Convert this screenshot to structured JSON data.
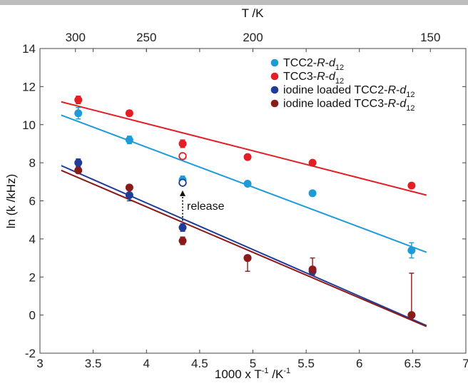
{
  "chart_data": {
    "type": "scatter",
    "xlabel": "1000 x T",
    "xlabel_sup1": "-1",
    "xlabel_mid": " /K",
    "xlabel_sup2": "-1",
    "ylabel": "ln (k /kHz)",
    "top_axis_label": "T /K",
    "xlim": [
      3,
      7
    ],
    "ylim": [
      -2,
      14
    ],
    "x_ticks": [
      "3",
      "3.5",
      "4",
      "4.5",
      "5",
      "5.5",
      "6",
      "6.5",
      "7"
    ],
    "y_ticks": [
      "-2",
      "0",
      "2",
      "4",
      "6",
      "8",
      "10",
      "12",
      "14"
    ],
    "top_ticks": [
      {
        "label": "300",
        "temperature": 300
      },
      {
        "label": "250",
        "temperature": 250
      },
      {
        "label": "200",
        "temperature": 200
      },
      {
        "label": "150",
        "temperature": 150
      }
    ],
    "grid": false,
    "legend_placement": "top-right",
    "series": [
      {
        "name": "TCC2-",
        "name_italic": "R",
        "name_dash": "-",
        "name_d": "d",
        "name_sub": "12",
        "color": "#1e9ad6",
        "x": [
          3.36,
          3.84,
          4.34,
          4.95,
          5.56,
          6.49
        ],
        "y": [
          10.6,
          9.2,
          7.1,
          6.9,
          6.4,
          3.4
        ],
        "err": [
          0.3,
          0.2,
          0.2,
          0.1,
          0.1,
          0.4
        ],
        "fit": {
          "x": [
            3.2,
            6.63
          ],
          "y": [
            10.5,
            3.3
          ]
        }
      },
      {
        "name": "TCC3-",
        "name_italic": "R",
        "name_dash": "-",
        "name_d": "d",
        "name_sub": "12",
        "color": "#e31e24",
        "x": [
          3.36,
          3.84,
          4.34,
          4.95,
          5.56,
          6.49
        ],
        "y": [
          11.3,
          10.6,
          9.0,
          8.3,
          8.0,
          6.8
        ],
        "err": [
          0.2,
          0.15,
          0.2,
          0.1,
          0.1,
          0.1
        ],
        "fit": {
          "x": [
            3.2,
            6.63
          ],
          "y": [
            11.2,
            6.3
          ]
        }
      },
      {
        "name": "iodine loaded TCC2-",
        "name_italic": "R",
        "name_dash": "-",
        "name_d": "d",
        "name_sub": "12",
        "color": "#1f3c99",
        "x": [
          3.36,
          3.84,
          4.34,
          4.95,
          5.56,
          6.49
        ],
        "y": [
          8.0,
          6.3,
          4.6,
          3.0,
          2.3,
          0.0
        ],
        "err": [
          0.2,
          0.3,
          0.2,
          0.1,
          0.1,
          0.1
        ],
        "fit": {
          "x": [
            3.2,
            6.63
          ],
          "y": [
            7.85,
            -0.55
          ]
        }
      },
      {
        "name": "iodine loaded TCC3-",
        "name_italic": "R",
        "name_dash": "-",
        "name_d": "d",
        "name_sub": "12",
        "color": "#8b1a1a",
        "x": [
          3.36,
          3.84,
          4.34,
          4.95,
          5.56,
          6.49
        ],
        "y": [
          7.6,
          6.7,
          3.9,
          3.0,
          2.4,
          0.0
        ],
        "err_low": [
          0.1,
          0.1,
          0.2,
          0.7,
          0.3,
          0.1
        ],
        "err_high": [
          0.1,
          0.1,
          0.2,
          0.1,
          0.6,
          2.2
        ],
        "fit": {
          "x": [
            3.2,
            6.63
          ],
          "y": [
            7.6,
            -0.6
          ]
        }
      }
    ],
    "open_markers": [
      {
        "x": 4.34,
        "y": 8.35,
        "color": "#e31e24"
      },
      {
        "x": 4.34,
        "y": 6.95,
        "color": "#1f3c99"
      }
    ],
    "annotation": {
      "text": "release",
      "arrow_from": {
        "x": 4.34,
        "y": 4.95
      },
      "arrow_to": {
        "x": 4.34,
        "y": 6.55
      }
    }
  }
}
